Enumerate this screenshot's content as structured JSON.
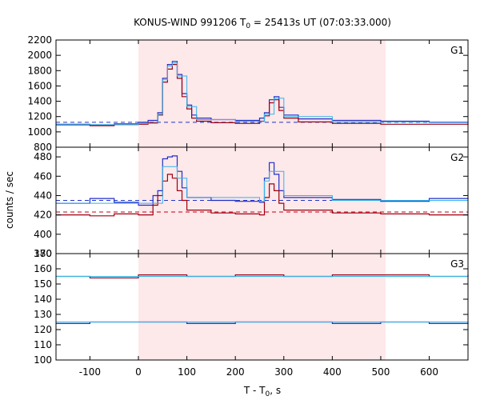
{
  "chart_data": {
    "type": "line",
    "title_main": "KONUS-WIND 991206 T",
    "title_sub": "0",
    "title_rest": " = 25413s UT (07:03:33.000)",
    "xlabel_main": "T - T",
    "xlabel_sub": "0",
    "xlabel_rest": ", s",
    "ylabel": "counts / sec",
    "xlim": [
      -170,
      680
    ],
    "xticks": [
      -100,
      0,
      100,
      200,
      300,
      400,
      500,
      600
    ],
    "shaded_interval": [
      0,
      510
    ],
    "colors": {
      "shade": "#fde8ea",
      "blue": "#1f2fc8",
      "red": "#a00010",
      "cyan": "#33b5e8",
      "dash_blue": "#2233cc",
      "dash_red": "#c00018"
    },
    "panels": [
      {
        "label": "G1",
        "ylim": [
          800,
          2200
        ],
        "yticks": [
          800,
          1000,
          1200,
          1400,
          1600,
          1800,
          2000,
          2200
        ],
        "background_level": 1125,
        "background_color": "blue",
        "series": [
          {
            "color": "blue",
            "points": [
              [
                -170,
                1100
              ],
              [
                -100,
                1090
              ],
              [
                -50,
                1105
              ],
              [
                0,
                1125
              ],
              [
                20,
                1150
              ],
              [
                40,
                1250
              ],
              [
                50,
                1700
              ],
              [
                60,
                1880
              ],
              [
                70,
                1920
              ],
              [
                80,
                1750
              ],
              [
                90,
                1500
              ],
              [
                100,
                1350
              ],
              [
                110,
                1220
              ],
              [
                120,
                1180
              ],
              [
                150,
                1160
              ],
              [
                200,
                1150
              ],
              [
                250,
                1180
              ],
              [
                260,
                1250
              ],
              [
                270,
                1420
              ],
              [
                280,
                1460
              ],
              [
                290,
                1320
              ],
              [
                300,
                1220
              ],
              [
                330,
                1170
              ],
              [
                400,
                1150
              ],
              [
                500,
                1140
              ],
              [
                600,
                1125
              ],
              [
                680,
                1115
              ]
            ]
          },
          {
            "color": "red",
            "points": [
              [
                -170,
                1090
              ],
              [
                -100,
                1080
              ],
              [
                -50,
                1095
              ],
              [
                0,
                1100
              ],
              [
                20,
                1120
              ],
              [
                40,
                1220
              ],
              [
                50,
                1650
              ],
              [
                60,
                1820
              ],
              [
                70,
                1880
              ],
              [
                80,
                1700
              ],
              [
                90,
                1460
              ],
              [
                100,
                1300
              ],
              [
                110,
                1180
              ],
              [
                120,
                1140
              ],
              [
                150,
                1120
              ],
              [
                200,
                1110
              ],
              [
                250,
                1140
              ],
              [
                260,
                1210
              ],
              [
                270,
                1380
              ],
              [
                280,
                1420
              ],
              [
                290,
                1280
              ],
              [
                300,
                1180
              ],
              [
                330,
                1130
              ],
              [
                400,
                1110
              ],
              [
                500,
                1100
              ],
              [
                600,
                1100
              ],
              [
                680,
                1090
              ]
            ]
          },
          {
            "color": "cyan",
            "points": [
              [
                -170,
                1095
              ],
              [
                0,
                1110
              ],
              [
                40,
                1230
              ],
              [
                50,
                1680
              ],
              [
                60,
                1860
              ],
              [
                70,
                1900
              ],
              [
                80,
                1730
              ],
              [
                100,
                1330
              ],
              [
                120,
                1160
              ],
              [
                200,
                1135
              ],
              [
                260,
                1230
              ],
              [
                280,
                1440
              ],
              [
                300,
                1200
              ],
              [
                400,
                1130
              ],
              [
                680,
                1105
              ]
            ]
          }
        ]
      },
      {
        "label": "G2",
        "ylim": [
          380,
          490
        ],
        "yticks": [
          380,
          400,
          420,
          440,
          460,
          480
        ],
        "background_levels": [
          {
            "value": 435,
            "color": "blue"
          },
          {
            "value": 423,
            "color": "red"
          }
        ],
        "series": [
          {
            "color": "blue",
            "points": [
              [
                -170,
                432
              ],
              [
                -100,
                437
              ],
              [
                -50,
                433
              ],
              [
                0,
                430
              ],
              [
                30,
                440
              ],
              [
                40,
                445
              ],
              [
                50,
                478
              ],
              [
                60,
                480
              ],
              [
                70,
                481
              ],
              [
                80,
                465
              ],
              [
                90,
                448
              ],
              [
                100,
                438
              ],
              [
                150,
                435
              ],
              [
                200,
                434
              ],
              [
                250,
                433
              ],
              [
                260,
                458
              ],
              [
                270,
                474
              ],
              [
                280,
                462
              ],
              [
                290,
                445
              ],
              [
                300,
                438
              ],
              [
                400,
                436
              ],
              [
                500,
                434
              ],
              [
                600,
                437
              ],
              [
                680,
                438
              ]
            ]
          },
          {
            "color": "red",
            "points": [
              [
                -170,
                420
              ],
              [
                -100,
                419
              ],
              [
                -50,
                421
              ],
              [
                0,
                420
              ],
              [
                30,
                430
              ],
              [
                40,
                440
              ],
              [
                50,
                455
              ],
              [
                60,
                462
              ],
              [
                70,
                458
              ],
              [
                80,
                445
              ],
              [
                90,
                435
              ],
              [
                100,
                425
              ],
              [
                150,
                422
              ],
              [
                200,
                421
              ],
              [
                250,
                420
              ],
              [
                260,
                438
              ],
              [
                270,
                452
              ],
              [
                280,
                445
              ],
              [
                290,
                432
              ],
              [
                300,
                425
              ],
              [
                400,
                422
              ],
              [
                500,
                421
              ],
              [
                600,
                420
              ],
              [
                680,
                420
              ]
            ]
          },
          {
            "color": "cyan",
            "points": [
              [
                -170,
                432
              ],
              [
                0,
                432
              ],
              [
                50,
                470
              ],
              [
                60,
                470
              ],
              [
                70,
                470
              ],
              [
                80,
                458
              ],
              [
                100,
                438
              ],
              [
                250,
                434
              ],
              [
                260,
                455
              ],
              [
                270,
                465
              ],
              [
                300,
                440
              ],
              [
                400,
                435
              ],
              [
                680,
                433
              ]
            ]
          }
        ]
      },
      {
        "label": "G3",
        "ylim": [
          100,
          170
        ],
        "yticks": [
          100,
          110,
          120,
          130,
          140,
          150,
          160,
          170
        ],
        "series": [
          {
            "color": "red",
            "points": [
              [
                -170,
                155
              ],
              [
                -100,
                154
              ],
              [
                0,
                156
              ],
              [
                100,
                155
              ],
              [
                200,
                156
              ],
              [
                300,
                155
              ],
              [
                400,
                156
              ],
              [
                500,
                156
              ],
              [
                600,
                155
              ],
              [
                680,
                156
              ]
            ]
          },
          {
            "color": "blue",
            "points": [
              [
                -170,
                124
              ],
              [
                -100,
                125
              ],
              [
                0,
                125
              ],
              [
                100,
                124
              ],
              [
                200,
                125
              ],
              [
                300,
                125
              ],
              [
                400,
                124
              ],
              [
                500,
                125
              ],
              [
                600,
                124
              ],
              [
                680,
                125
              ]
            ]
          },
          {
            "color": "cyan",
            "points": [
              [
                -170,
                155
              ],
              [
                680,
                156
              ]
            ]
          },
          {
            "color": "cyan",
            "points": [
              [
                -170,
                125
              ],
              [
                680,
                125
              ]
            ]
          }
        ]
      }
    ]
  }
}
